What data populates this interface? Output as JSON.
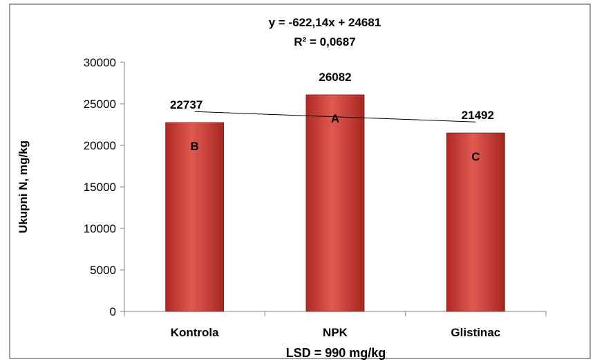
{
  "chart_data": {
    "type": "bar",
    "title": "",
    "trendline_equation": "y = -622,14x + 24681",
    "trendline_r2": "R² = 0,0687",
    "xlabel": "LSD = 990 mg/kg",
    "ylabel": "Ukupni N, mg/kg",
    "categories": [
      "Kontrola",
      "NPK",
      "Glistinac"
    ],
    "values": [
      22737,
      26082,
      21492
    ],
    "value_labels": [
      "22737",
      "26082",
      "21492"
    ],
    "group_letters": [
      "B",
      "A",
      "C"
    ],
    "ylim": [
      0,
      30000
    ],
    "yticks": [
      0,
      5000,
      10000,
      15000,
      20000,
      25000,
      30000
    ],
    "ytick_labels": [
      "0",
      "5000",
      "10000",
      "15000",
      "20000",
      "25000",
      "30000"
    ],
    "trendline": {
      "slope": -622.14,
      "intercept": 24681
    },
    "grid": false,
    "legend": "none",
    "colors": {
      "bar_light": "#e85a5a",
      "bar_main": "#c0392b",
      "bar_dark": "#8e1f1a",
      "trendline": "#000000",
      "axis": "#808080",
      "border": "#808080"
    }
  }
}
